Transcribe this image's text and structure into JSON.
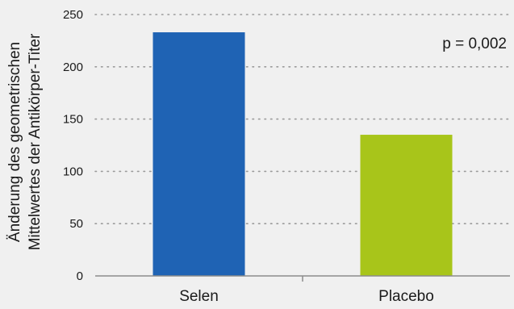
{
  "chart_data": {
    "type": "bar",
    "categories": [
      "Selen",
      "Placebo"
    ],
    "values": [
      233,
      135
    ],
    "colors": [
      "#1f63b4",
      "#a8c51a"
    ],
    "ylabel_lines": [
      "Änderung des geometrischen",
      "Mittelwertes der Antikörper-Titer"
    ],
    "xlabel": "",
    "ylim": [
      0,
      250
    ],
    "yticks": [
      0,
      50,
      100,
      150,
      200,
      250
    ],
    "grid": "horizontal-dotted",
    "annotation": "p = 0,002",
    "background": "#f0f0f0",
    "axis_color": "#8c8c8c",
    "grid_color": "#9a9a9a"
  }
}
